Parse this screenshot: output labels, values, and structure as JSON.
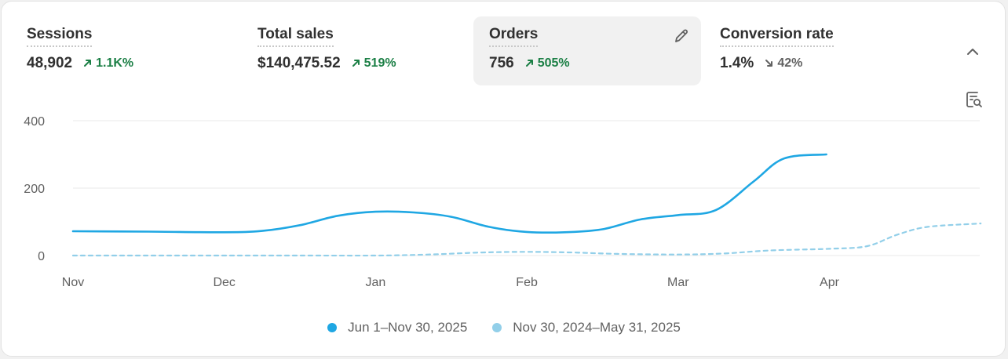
{
  "metrics": [
    {
      "label": "Sessions",
      "value": "48,902",
      "change": "1.1K%",
      "direction": "up"
    },
    {
      "label": "Total sales",
      "value": "$140,475.52",
      "change": "519%",
      "direction": "up"
    },
    {
      "label": "Orders",
      "value": "756",
      "change": "505%",
      "direction": "up",
      "selected": true
    },
    {
      "label": "Conversion rate",
      "value": "1.4%",
      "change": "42%",
      "direction": "down"
    }
  ],
  "colors": {
    "positive": "#1b7f45",
    "negative": "#616161",
    "current_series": "#1fa7e3",
    "previous_series": "#92cfe9",
    "grid": "#e8e8e8",
    "axis_text": "#616161"
  },
  "icons": {
    "edit": "pencil-icon",
    "collapse": "chevron-up-icon",
    "insights": "search-report-icon"
  },
  "chart_data": {
    "type": "line",
    "x_labels": [
      "Nov",
      "Dec",
      "Jan",
      "Feb",
      "Mar",
      "Apr"
    ],
    "y_ticks": [
      0,
      200,
      400
    ],
    "ylim": [
      0,
      400
    ],
    "grid": true,
    "legend_position": "bottom-center",
    "series": [
      {
        "name": "Jun 1–Nov 30, 2025",
        "style": "solid",
        "points": [
          [
            0,
            72
          ],
          [
            0.5,
            71
          ],
          [
            1,
            69
          ],
          [
            1.25,
            73
          ],
          [
            1.5,
            90
          ],
          [
            1.75,
            118
          ],
          [
            2,
            130
          ],
          [
            2.25,
            128
          ],
          [
            2.5,
            115
          ],
          [
            2.75,
            85
          ],
          [
            3,
            70
          ],
          [
            3.25,
            69
          ],
          [
            3.5,
            78
          ],
          [
            3.75,
            107
          ],
          [
            4,
            120
          ],
          [
            4.25,
            135
          ],
          [
            4.5,
            220
          ],
          [
            4.7,
            288
          ],
          [
            4.98,
            300
          ]
        ]
      },
      {
        "name": "Nov 30, 2024–May 31, 2025",
        "style": "dashed",
        "points": [
          [
            0,
            0
          ],
          [
            0.5,
            0
          ],
          [
            1,
            0
          ],
          [
            1.5,
            0
          ],
          [
            2,
            0
          ],
          [
            2.35,
            3
          ],
          [
            2.7,
            9
          ],
          [
            3,
            11
          ],
          [
            3.3,
            9
          ],
          [
            3.6,
            5
          ],
          [
            4,
            3
          ],
          [
            4.3,
            6
          ],
          [
            4.6,
            15
          ],
          [
            5,
            20
          ],
          [
            5.25,
            28
          ],
          [
            5.45,
            62
          ],
          [
            5.65,
            85
          ],
          [
            6,
            95
          ]
        ]
      }
    ]
  }
}
